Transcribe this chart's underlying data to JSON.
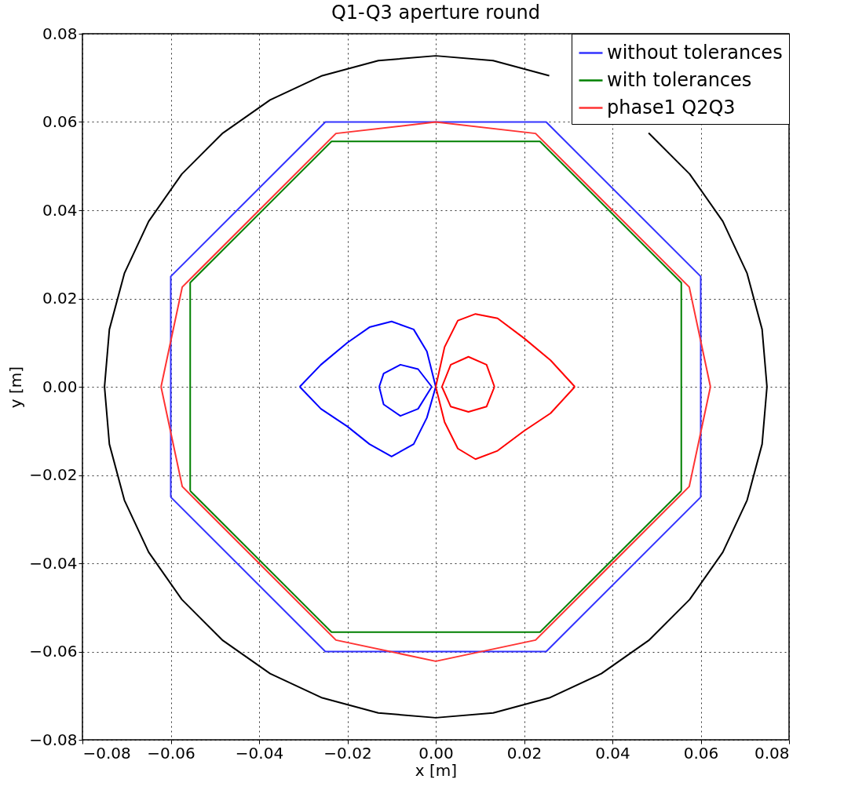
{
  "chart_data": {
    "type": "line",
    "title": "Q1-Q3 aperture round",
    "xlabel": "x [m]",
    "ylabel": "y [m]",
    "xlim": [
      -0.08,
      0.08
    ],
    "ylim": [
      -0.08,
      0.08
    ],
    "xticks": [
      {
        "value": -0.08,
        "label": "−0.08"
      },
      {
        "value": -0.06,
        "label": "−0.06"
      },
      {
        "value": -0.04,
        "label": "−0.04"
      },
      {
        "value": -0.02,
        "label": "−0.02"
      },
      {
        "value": 0,
        "label": "0.00"
      },
      {
        "value": 0.02,
        "label": "0.02"
      },
      {
        "value": 0.04,
        "label": "0.04"
      },
      {
        "value": 0.06,
        "label": "0.06"
      },
      {
        "value": 0.08,
        "label": "0.08"
      }
    ],
    "yticks": [
      {
        "value": -0.08,
        "label": "−0.08"
      },
      {
        "value": -0.06,
        "label": "−0.06"
      },
      {
        "value": -0.04,
        "label": "−0.04"
      },
      {
        "value": -0.02,
        "label": "−0.02"
      },
      {
        "value": 0,
        "label": "0.00"
      },
      {
        "value": 0.02,
        "label": "0.02"
      },
      {
        "value": 0.04,
        "label": "0.04"
      },
      {
        "value": 0.06,
        "label": "0.06"
      },
      {
        "value": 0.08,
        "label": "0.08"
      }
    ],
    "grid": true,
    "legend": "top right",
    "line_style": "solid",
    "marker": "none",
    "series": [
      {
        "name": "without tolerances",
        "color": "#3333ff",
        "x": [
          -0.06,
          -0.06,
          -0.025,
          0.025,
          0.06,
          0.06,
          null,
          -0.06,
          -0.025,
          0.025,
          0.06
        ],
        "values": [
          -0.025,
          0.025,
          0.06,
          0.06,
          0.025,
          -0.025,
          null,
          -0.025,
          -0.06,
          -0.06,
          -0.025
        ]
      },
      {
        "name": "with tolerances",
        "color": "#008000",
        "x": [
          -0.0556,
          -0.0556,
          -0.0236,
          0.0236,
          0.0556,
          0.0556,
          null,
          -0.0556,
          -0.0236,
          0.0236,
          0.0556
        ],
        "values": [
          -0.0236,
          0.0236,
          0.0556,
          0.0556,
          0.0236,
          -0.0236,
          null,
          -0.0236,
          -0.0556,
          -0.0556,
          -0.0236
        ]
      },
      {
        "name": "phase1 Q2Q3",
        "color": "#ff3333",
        "x": [
          -0.0622,
          -0.0574,
          -0.0226,
          0,
          0.0226,
          0.0574,
          0.0622,
          null,
          -0.0622,
          -0.0574,
          -0.0226,
          0,
          0.0226,
          0.0574,
          0.0622
        ],
        "values": [
          0,
          0.0226,
          0.0574,
          0.06,
          0.0574,
          0.0226,
          0,
          null,
          0,
          -0.0226,
          -0.0574,
          -0.0622,
          -0.0574,
          -0.0226,
          0
        ]
      },
      {
        "color": "#000000",
        "x": [
          -0.075,
          -0.0739,
          -0.0705,
          -0.065,
          -0.0575,
          -0.0482,
          -0.0375,
          -0.0257,
          -0.013,
          0,
          0.013,
          0.0257,
          0.0375,
          0.0482,
          0.0575,
          0.065,
          0.0705,
          0.0739,
          0.075,
          null,
          -0.075,
          -0.0739,
          -0.0705,
          -0.065,
          -0.0575,
          -0.0482,
          -0.0375,
          -0.0257,
          -0.013,
          0,
          0.013,
          0.0257,
          0.0375,
          0.0482,
          0.0575,
          0.065,
          0.0705,
          0.0739,
          0.075
        ],
        "values": [
          0,
          0.013,
          0.0257,
          0.0375,
          0.0482,
          0.0575,
          0.065,
          0.0705,
          0.0739,
          0.075,
          0.0739,
          0.0705,
          null,
          0.0575,
          0.0482,
          0.0375,
          0.0257,
          0.013,
          0,
          null,
          0,
          -0.013,
          -0.0257,
          -0.0375,
          -0.0482,
          -0.0575,
          -0.065,
          -0.0705,
          -0.0739,
          -0.075,
          -0.0739,
          -0.0705,
          -0.065,
          -0.0575,
          -0.0482,
          -0.0375,
          -0.0257,
          -0.013,
          0
        ]
      },
      {
        "color": "#0000ff",
        "x": [
          -0.0308,
          -0.026,
          -0.02,
          -0.015,
          -0.01,
          -0.005,
          -0.002,
          0,
          null,
          -0.0308,
          -0.026,
          -0.02,
          -0.015,
          -0.01,
          -0.005,
          -0.002,
          0,
          null,
          -0.0128,
          -0.0118,
          -0.008,
          -0.004,
          -0.0009,
          null,
          -0.0128,
          -0.0118,
          -0.008,
          -0.004,
          -0.0009
        ],
        "values": [
          0,
          0.005,
          0.01,
          0.0135,
          0.0148,
          0.013,
          0.008,
          0,
          null,
          0,
          -0.005,
          -0.009,
          -0.013,
          -0.0158,
          -0.013,
          -0.007,
          0,
          null,
          0,
          0.003,
          0.005,
          0.004,
          0,
          null,
          0,
          -0.004,
          -0.0066,
          -0.005,
          0
        ]
      },
      {
        "color": "#ff0000",
        "x": [
          0,
          0.002,
          0.005,
          0.009,
          0.014,
          0.02,
          0.026,
          0.0315,
          null,
          0,
          0.002,
          0.005,
          0.009,
          0.014,
          0.02,
          0.026,
          0.0315,
          null,
          0.0014,
          0.0034,
          0.0074,
          0.0115,
          0.0133,
          null,
          0.0014,
          0.0034,
          0.0074,
          0.0115,
          0.0133
        ],
        "values": [
          0,
          0.009,
          0.015,
          0.0165,
          0.0155,
          0.011,
          0.006,
          0,
          null,
          0,
          -0.008,
          -0.014,
          -0.0164,
          -0.0145,
          -0.01,
          -0.006,
          0,
          null,
          0,
          0.005,
          0.0068,
          0.005,
          0,
          null,
          0,
          -0.0045,
          -0.0057,
          -0.0045,
          0
        ]
      }
    ]
  }
}
